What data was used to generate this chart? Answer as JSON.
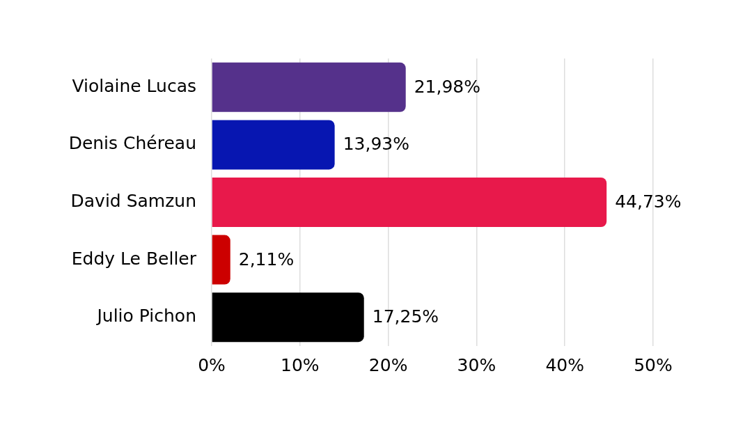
{
  "chart_data": {
    "type": "bar",
    "orientation": "horizontal",
    "categories": [
      "Violaine Lucas",
      "Denis Chéreau",
      "David Samzun",
      "Eddy Le Beller",
      "Julio Pichon"
    ],
    "values": [
      21.98,
      13.93,
      44.73,
      2.11,
      17.25
    ],
    "colors": [
      "#55318b",
      "#0716b1",
      "#e8194b",
      "#cc0000",
      "#000000"
    ],
    "value_labels": [
      "21,98%",
      "13,93%",
      "44,73%",
      "2,11%",
      "17,25%"
    ],
    "xlim": [
      0,
      50
    ],
    "xticks": [
      {
        "value": 0,
        "label": "0%"
      },
      {
        "value": 10,
        "label": "10%"
      },
      {
        "value": 20,
        "label": "20%"
      },
      {
        "value": 30,
        "label": "30%"
      },
      {
        "value": 40,
        "label": "40%"
      },
      {
        "value": 50,
        "label": "50%"
      }
    ],
    "grid": "x"
  }
}
